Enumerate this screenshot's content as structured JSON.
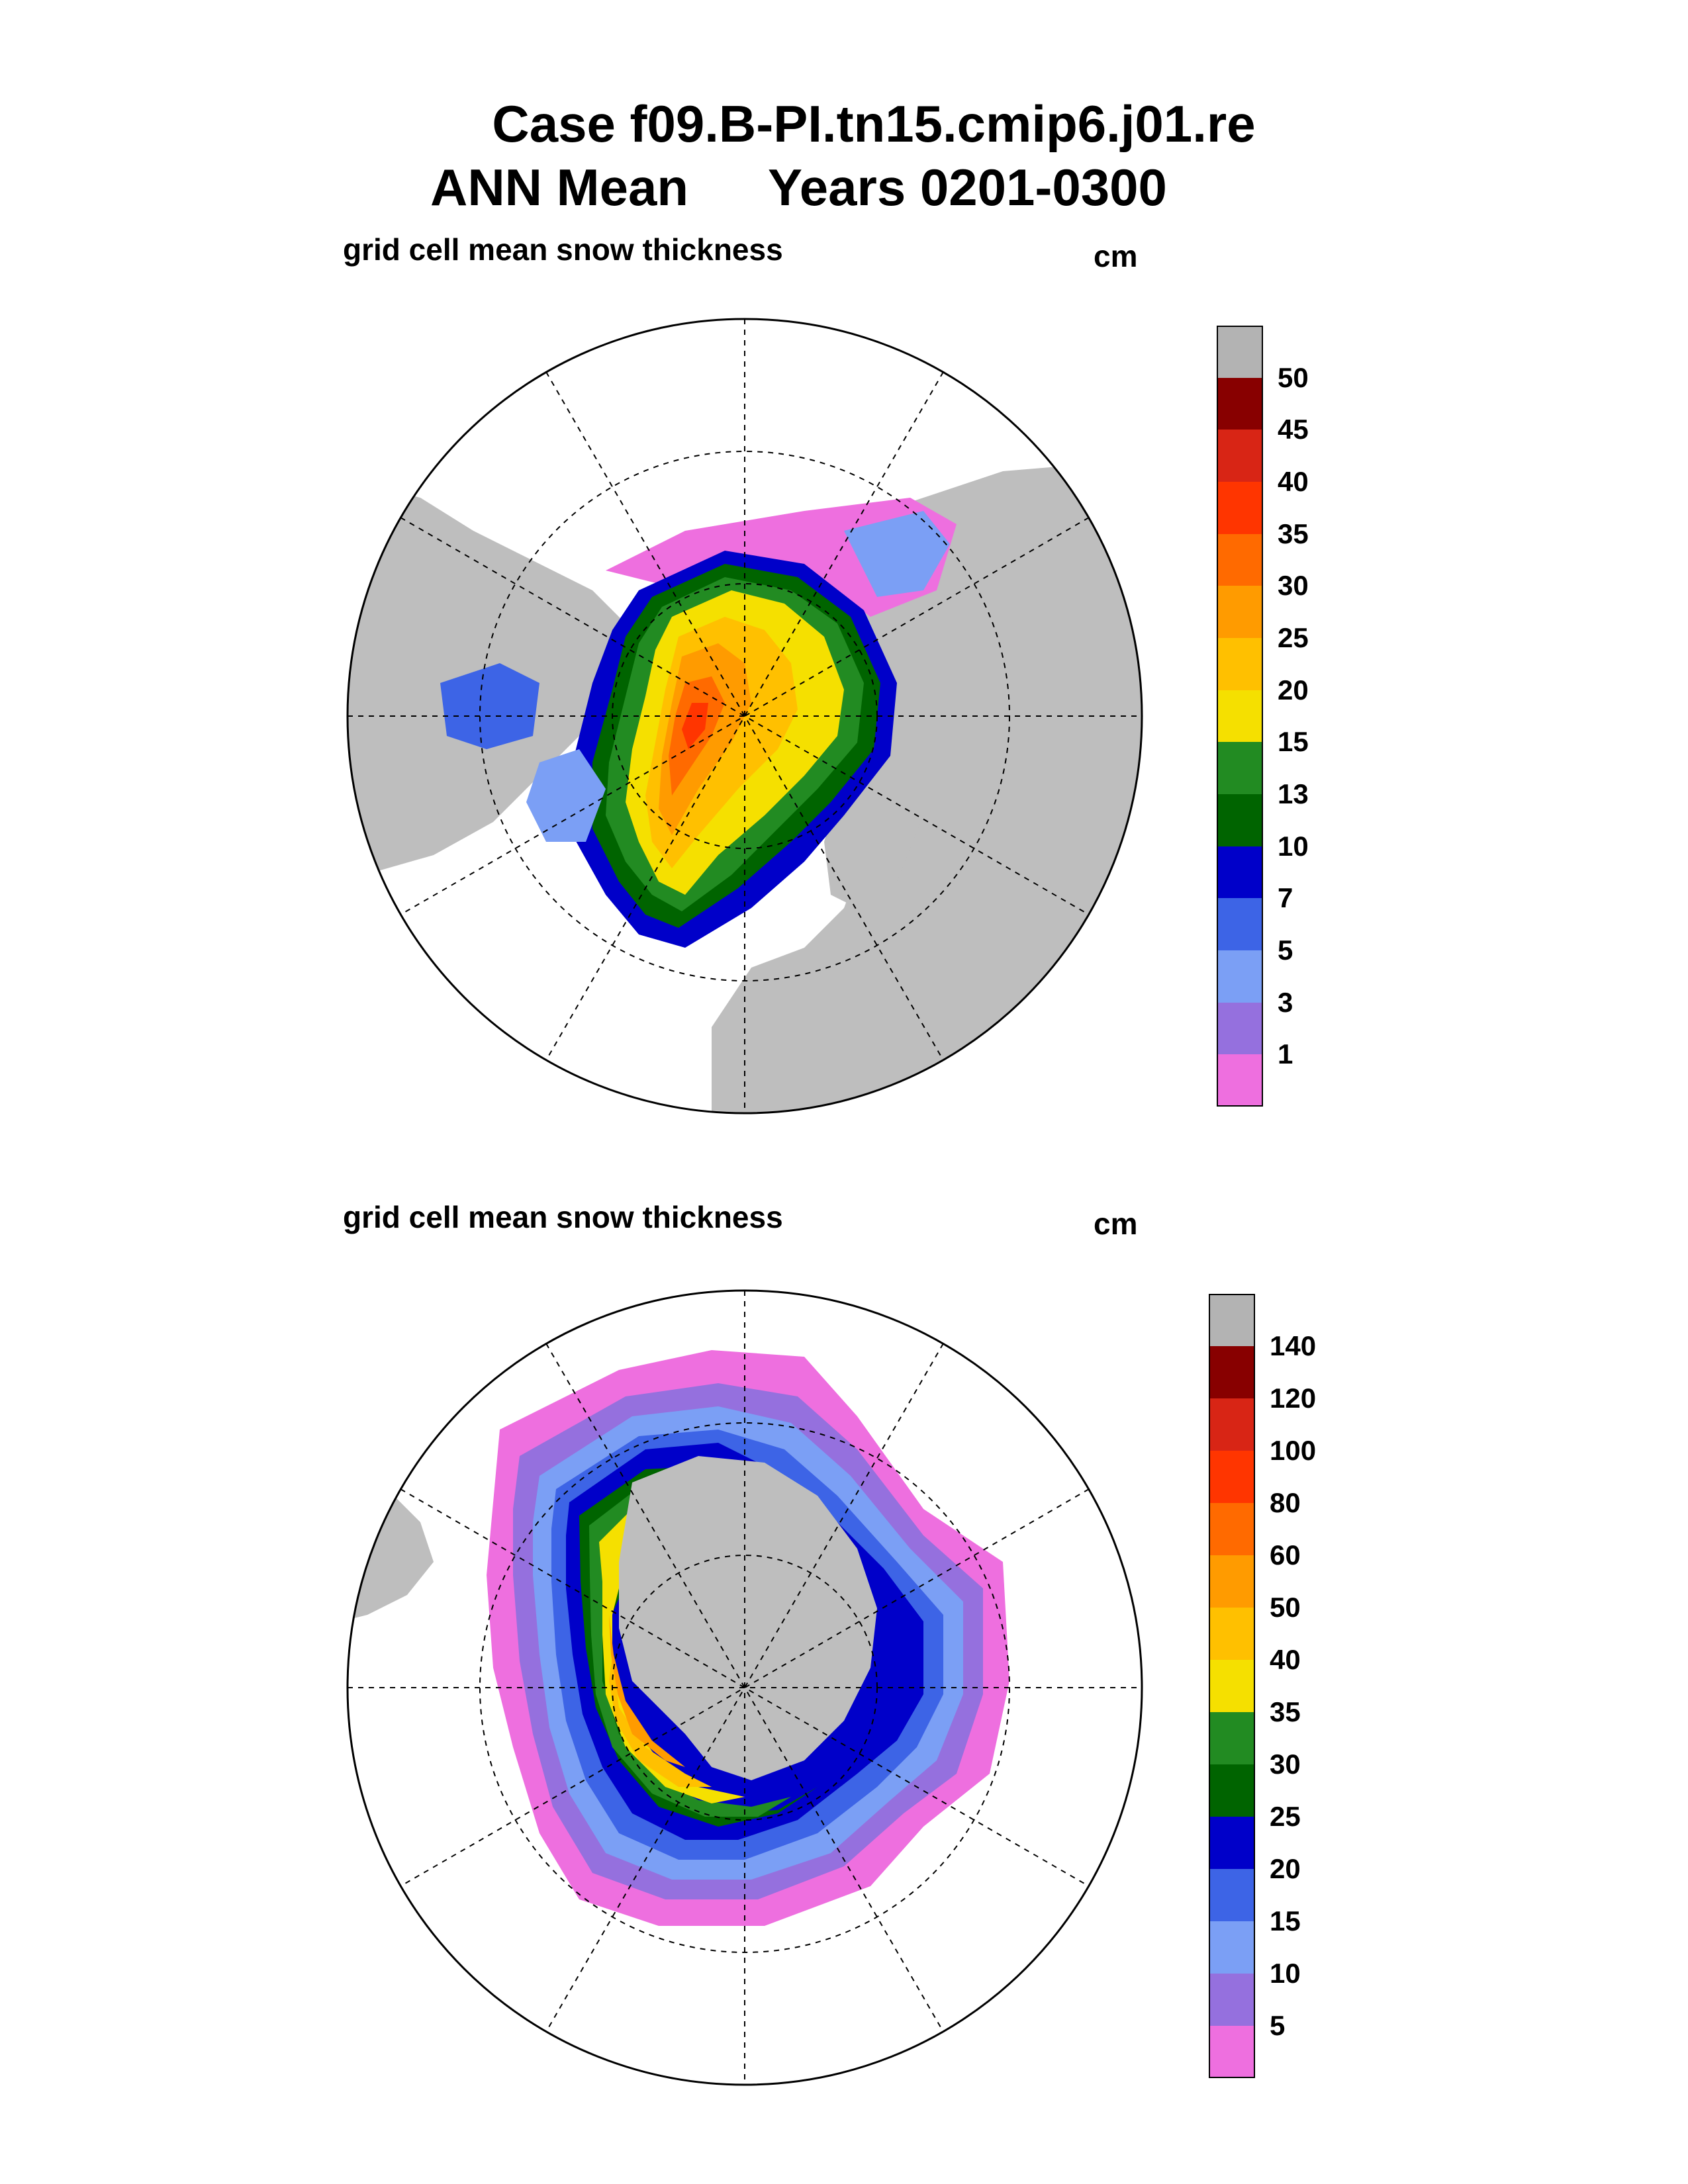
{
  "title": {
    "line1": "Case f09.B-PI.tn15.cmip6.j01.re",
    "line2_left": "ANN Mean",
    "line2_right": "Years 0201-0300"
  },
  "panels": [
    {
      "hemisphere": "north",
      "label": "grid cell mean snow thickness",
      "unit": "cm",
      "colorbar": {
        "colors": [
          "#ee6fdf",
          "#9570de",
          "#7b9ff5",
          "#3d64e6",
          "#0000c9",
          "#006400",
          "#228b22",
          "#f5e000",
          "#ffc000",
          "#ff9b00",
          "#ff6a00",
          "#ff3500",
          "#d82515",
          "#880000",
          "#b3b3b3"
        ],
        "ticks": [
          "1",
          "3",
          "5",
          "7",
          "10",
          "13",
          "15",
          "20",
          "25",
          "30",
          "35",
          "40",
          "45",
          "50"
        ]
      }
    },
    {
      "hemisphere": "south",
      "label": "grid cell mean snow thickness",
      "unit": "cm",
      "colorbar": {
        "colors": [
          "#ee6fdf",
          "#9570de",
          "#7b9ff5",
          "#3d64e6",
          "#0000c9",
          "#006400",
          "#228b22",
          "#f5e000",
          "#ffc000",
          "#ff9b00",
          "#ff6a00",
          "#ff3500",
          "#d82515",
          "#880000",
          "#b3b3b3"
        ],
        "ticks": [
          "5",
          "10",
          "15",
          "20",
          "25",
          "30",
          "35",
          "40",
          "50",
          "60",
          "80",
          "100",
          "120",
          "140"
        ]
      }
    }
  ],
  "colors": {
    "land": "#bebebe",
    "ocean": "#ffffff"
  }
}
